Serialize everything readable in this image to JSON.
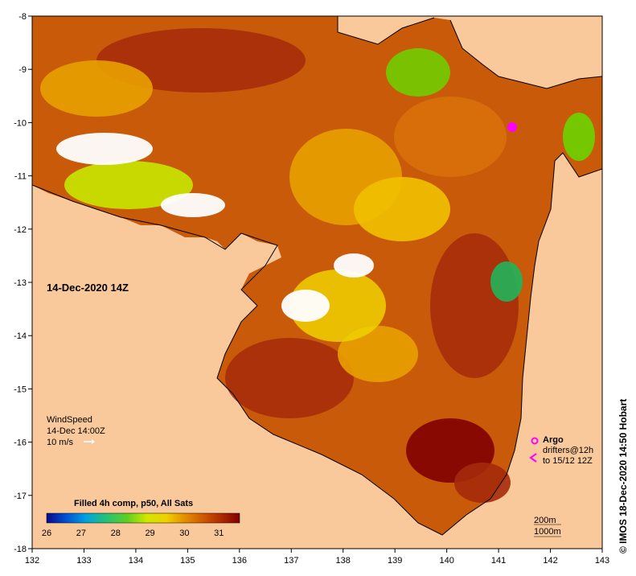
{
  "map": {
    "date_label": "14-Dec-2020 14Z",
    "credit": "© IMOS 18-Dec-2020 14:50 Hobart",
    "x_ticks": [
      "132",
      "133",
      "134",
      "135",
      "136",
      "137",
      "138",
      "139",
      "140",
      "141",
      "142",
      "143"
    ],
    "y_ticks": [
      "-8",
      "-9",
      "-10",
      "-11",
      "-12",
      "-13",
      "-14",
      "-15",
      "-16",
      "-17",
      "-18"
    ],
    "x_range": [
      132,
      143
    ],
    "y_range": [
      -18,
      -8
    ],
    "land_color": "#F9C99B",
    "palette": [
      "#800000",
      "#A52A0A",
      "#C04000",
      "#D9700A",
      "#E8A000",
      "#F0D000",
      "#C8E600",
      "#6CD400",
      "#20B45A",
      "#0090C0"
    ]
  },
  "wind": {
    "title": "WindSpeed",
    "time": "14-Dec 14:00Z",
    "scale": "10 m/s",
    "arrow_icon": "arrow-icon"
  },
  "argo": {
    "title": "Argo",
    "line1": "drifters@12h",
    "line2": "to 15/12 12Z",
    "float_icon": "argo-float-icon",
    "drifter_icon": "drifter-arrow-icon",
    "color": "#FF00FF"
  },
  "depth": {
    "line1": "200m",
    "line2": "1000m"
  },
  "colorbar": {
    "title": "Filled 4h comp, p50, All Sats",
    "ticks": [
      "26",
      "27",
      "28",
      "29",
      "30",
      "31"
    ],
    "range": [
      26,
      31.6
    ]
  }
}
